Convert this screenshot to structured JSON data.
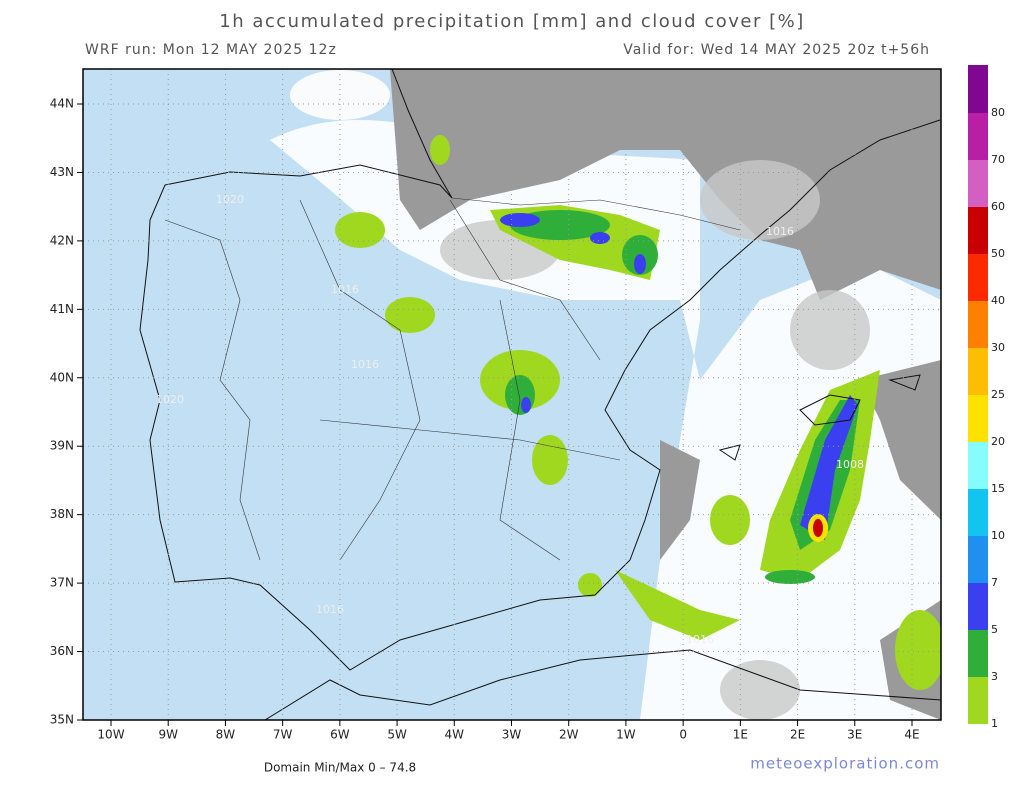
{
  "header": {
    "title": "1h accumulated precipitation [mm] and cloud cover [%]",
    "run": "WRF run: Mon 12 MAY 2025 12z",
    "valid": "Valid for: Wed 14 MAY 2025 20z  t+56h"
  },
  "map": {
    "lat_labels": [
      "44N",
      "43N",
      "42N",
      "41N",
      "40N",
      "39N",
      "38N",
      "37N",
      "36N",
      "35N"
    ],
    "lon_labels": [
      "10W",
      "9W",
      "8W",
      "7W",
      "6W",
      "5W",
      "4W",
      "3W",
      "2W",
      "1W",
      "0",
      "1E",
      "2E",
      "3E",
      "4E"
    ],
    "isobars": [
      "1020",
      "1016",
      "1016",
      "1020",
      "1016",
      "1016",
      "1008",
      "1016"
    ]
  },
  "colorbar": {
    "levels": [
      1,
      3,
      5,
      7,
      10,
      15,
      20,
      25,
      30,
      40,
      50,
      60,
      70,
      80
    ],
    "colors": [
      "#9fd81f",
      "#2fae3a",
      "#3a40f0",
      "#1f8ff0",
      "#13c3f0",
      "#86fdfd",
      "#fde200",
      "#fdbd00",
      "#fd8000",
      "#fd2a00",
      "#c80000",
      "#d35fc3",
      "#b81fa4",
      "#80078f"
    ]
  },
  "footer": {
    "minmax": "Domain Min/Max 0 – 74.8",
    "credit": "meteoexploration.com"
  }
}
